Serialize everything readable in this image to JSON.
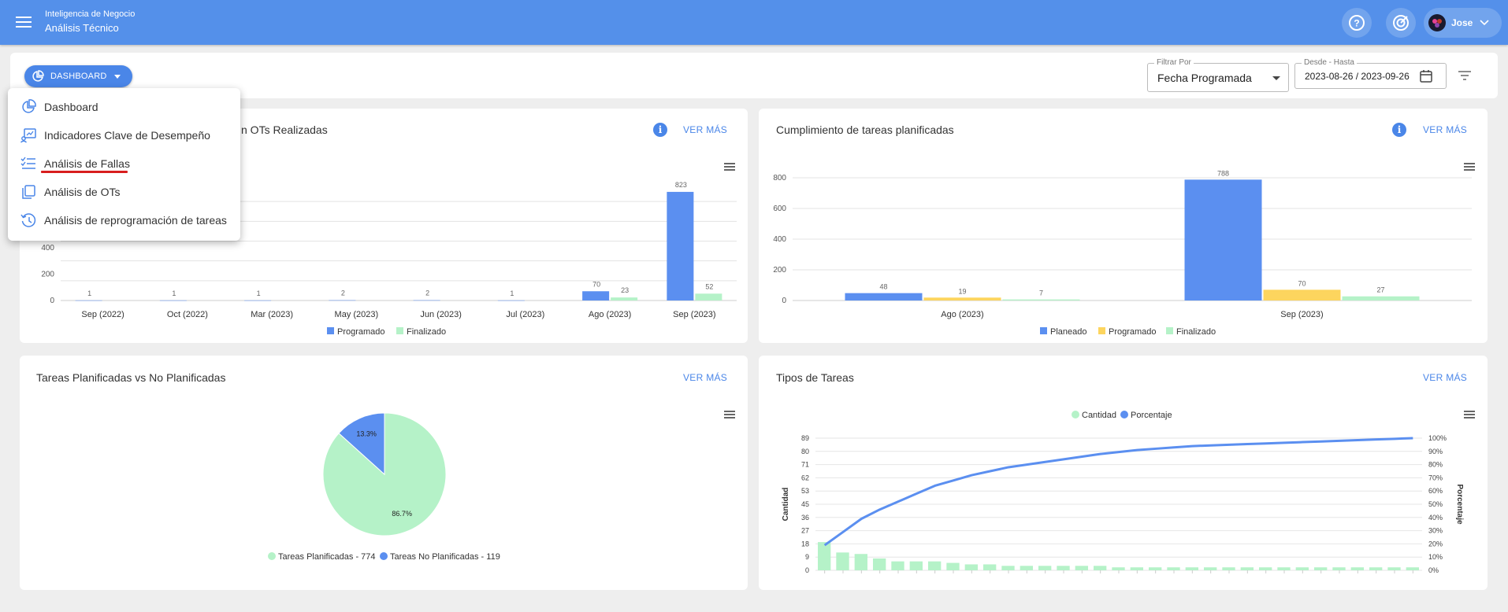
{
  "header": {
    "app": "Inteligencia de Negocio",
    "module": "Análisis Técnico",
    "user": "Jose"
  },
  "toolbar": {
    "dashboard_btn": "DASHBOARD",
    "filter_label": "Filtrar Por",
    "filter_value": "Fecha Programada",
    "range_label": "Desde - Hasta",
    "range_value": "2023-08-26 / 2023-09-26"
  },
  "menu": {
    "items": [
      {
        "label": "Dashboard",
        "icon": "pie-chart-icon"
      },
      {
        "label": "Indicadores Clave de Desempeño",
        "icon": "kpi-icon"
      },
      {
        "label": "Análisis de Fallas",
        "icon": "checklist-icon"
      },
      {
        "label": "Análisis de OTs",
        "icon": "copy-icon"
      },
      {
        "label": "Análisis de reprogramación de tareas",
        "icon": "history-icon"
      }
    ],
    "selected": "Análisis de Fallas"
  },
  "cards": {
    "c1": {
      "title": "n OTs Realizadas",
      "more": "VER MÁS"
    },
    "c2": {
      "title": "Cumplimiento de tareas planificadas",
      "more": "VER MÁS"
    },
    "c3": {
      "title": "Tareas Planificadas vs No Planificadas",
      "more": "VER MÁS"
    },
    "c4": {
      "title": "Tipos de Tareas",
      "more": "VER MÁS"
    }
  },
  "colors": {
    "blue": "#5b8ff0",
    "green": "#b5f2c8",
    "yellow": "#fdd55e",
    "header": "#5490ea"
  },
  "chart_data": [
    {
      "type": "bar",
      "categories": [
        "Sep (2022)",
        "Oct (2022)",
        "Mar (2023)",
        "May (2023)",
        "Jun (2023)",
        "Jul (2023)",
        "Ago (2023)",
        "Sep (2023)"
      ],
      "series": [
        {
          "name": "Programado",
          "values": [
            1,
            1,
            1,
            2,
            2,
            1,
            70,
            823
          ]
        },
        {
          "name": "Finalizado",
          "values": [
            null,
            null,
            null,
            null,
            null,
            null,
            23,
            52
          ]
        }
      ],
      "yticks": [
        0,
        200,
        400
      ],
      "ylim": [
        0,
        900
      ],
      "legend": "bottom"
    },
    {
      "type": "bar",
      "categories": [
        "Ago (2023)",
        "Sep (2023)"
      ],
      "series": [
        {
          "name": "Planeado",
          "values": [
            48,
            788
          ]
        },
        {
          "name": "Programado",
          "values": [
            19,
            70
          ]
        },
        {
          "name": "Finalizado",
          "values": [
            7,
            27
          ]
        }
      ],
      "yticks": [
        0,
        200,
        400,
        600,
        800
      ],
      "ylim": [
        0,
        800
      ],
      "legend": "bottom"
    },
    {
      "type": "pie",
      "slices": [
        {
          "name": "Tareas Planificadas - 774",
          "value": 774,
          "pct_label": "86.7%"
        },
        {
          "name": "Tareas No Planificadas - 119",
          "value": 119,
          "pct_label": "13.3%"
        }
      ],
      "legend": "bottom"
    },
    {
      "type": "bar",
      "ylabel": "Cantidad",
      "y2label": "Porcentaje",
      "series": [
        {
          "name": "Cantidad",
          "values": [
            19,
            12,
            11,
            8,
            6,
            6,
            6,
            5,
            4,
            4,
            3,
            3,
            3,
            3,
            3,
            3,
            2,
            2,
            2,
            2,
            2,
            2,
            2,
            2,
            2,
            2,
            2,
            2,
            2,
            2,
            2,
            2,
            2
          ]
        },
        {
          "name": "Porcentaje",
          "values": [
            19,
            29,
            39,
            46,
            52,
            58,
            64,
            68,
            72,
            75,
            78,
            80,
            82,
            84,
            86,
            88,
            89.5,
            91,
            92,
            93,
            94,
            94.5,
            95,
            95.5,
            96,
            96.5,
            97,
            97.5,
            98,
            98.5,
            99,
            99.5,
            100
          ]
        }
      ],
      "yticks": [
        0,
        9,
        18,
        27,
        36,
        45,
        53,
        62,
        71,
        80,
        89
      ],
      "y2ticks": [
        "0%",
        "10%",
        "20%",
        "30%",
        "40%",
        "50%",
        "60%",
        "70%",
        "80%",
        "90%",
        "100%"
      ],
      "ylim": [
        0,
        89
      ],
      "legend": "top"
    }
  ]
}
